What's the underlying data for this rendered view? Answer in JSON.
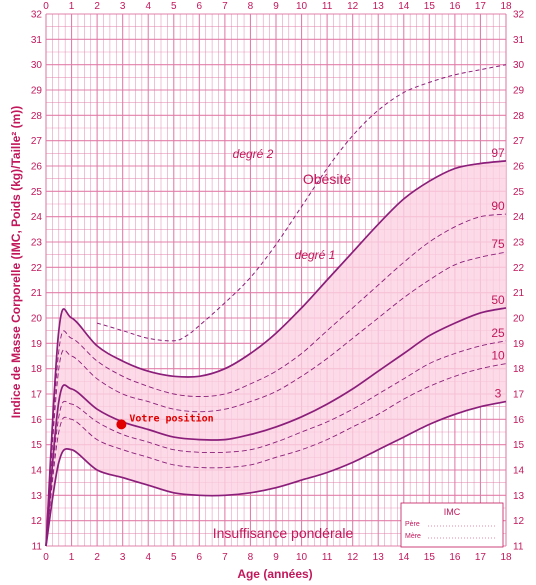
{
  "chart_data": {
    "type": "line",
    "xlabel": "Age (années)",
    "ylabel": "Indice de Masse Corporelle (IMC, Poids (kg)/Taille² (m))",
    "xlim": [
      0,
      18
    ],
    "ylim": [
      11,
      32
    ],
    "x_ticks": [
      "0",
      "1",
      "2",
      "3",
      "4",
      "5",
      "6",
      "7",
      "8",
      "9",
      "10",
      "11",
      "12",
      "13",
      "14",
      "15",
      "16",
      "17",
      "18"
    ],
    "y_ticks": [
      "11",
      "12",
      "13",
      "14",
      "15",
      "16",
      "17",
      "18",
      "19",
      "20",
      "21",
      "22",
      "23",
      "24",
      "25",
      "26",
      "27",
      "28",
      "29",
      "30",
      "31",
      "32"
    ],
    "grid": true,
    "series": [
      {
        "name": "3",
        "x": [
          0,
          0.5,
          1,
          2,
          3,
          4,
          5,
          6,
          7,
          8,
          9,
          10,
          11,
          12,
          13,
          14,
          15,
          16,
          17,
          18
        ],
        "values": [
          11.0,
          14.3,
          14.8,
          14.0,
          13.7,
          13.4,
          13.1,
          13.0,
          13.0,
          13.1,
          13.3,
          13.6,
          13.9,
          14.3,
          14.8,
          15.3,
          15.8,
          16.2,
          16.5,
          16.7
        ]
      },
      {
        "name": "10",
        "x": [
          0,
          0.5,
          1,
          2,
          3,
          4,
          5,
          6,
          7,
          8,
          9,
          10,
          11,
          12,
          13,
          14,
          15,
          16,
          17,
          18
        ],
        "values": [
          11.0,
          15.5,
          16.0,
          15.2,
          14.8,
          14.5,
          14.2,
          14.1,
          14.1,
          14.2,
          14.5,
          14.8,
          15.2,
          15.7,
          16.2,
          16.8,
          17.3,
          17.7,
          18.0,
          18.2
        ]
      },
      {
        "name": "25",
        "x": [
          0,
          0.5,
          1,
          2,
          3,
          4,
          5,
          6,
          7,
          8,
          9,
          10,
          11,
          12,
          13,
          14,
          15,
          16,
          17,
          18
        ],
        "values": [
          11.0,
          16.1,
          16.6,
          15.9,
          15.4,
          15.1,
          14.8,
          14.7,
          14.7,
          14.8,
          15.1,
          15.5,
          15.9,
          16.4,
          17.0,
          17.6,
          18.2,
          18.6,
          18.9,
          19.1
        ]
      },
      {
        "name": "50",
        "x": [
          0,
          0.5,
          1,
          2,
          3,
          4,
          5,
          6,
          7,
          8,
          9,
          10,
          11,
          12,
          13,
          14,
          15,
          16,
          17,
          18
        ],
        "values": [
          11.0,
          16.7,
          17.2,
          16.4,
          15.9,
          15.6,
          15.3,
          15.2,
          15.2,
          15.4,
          15.7,
          16.1,
          16.6,
          17.2,
          17.9,
          18.6,
          19.3,
          19.8,
          20.2,
          20.4
        ]
      },
      {
        "name": "75",
        "x": [
          0,
          0.5,
          1,
          2,
          3,
          4,
          5,
          6,
          7,
          8,
          9,
          10,
          11,
          12,
          13,
          14,
          15,
          16,
          17,
          18
        ],
        "values": [
          11.0,
          18.0,
          18.5,
          17.6,
          17.0,
          16.7,
          16.4,
          16.3,
          16.4,
          16.7,
          17.1,
          17.7,
          18.4,
          19.2,
          20.0,
          20.8,
          21.5,
          22.1,
          22.4,
          22.6
        ]
      },
      {
        "name": "90",
        "x": [
          0,
          0.5,
          1,
          2,
          3,
          4,
          5,
          6,
          7,
          8,
          9,
          10,
          11,
          12,
          13,
          14,
          15,
          16,
          17,
          18
        ],
        "values": [
          11.0,
          18.7,
          19.2,
          18.3,
          17.7,
          17.3,
          17.0,
          16.9,
          17.0,
          17.4,
          17.9,
          18.6,
          19.5,
          20.4,
          21.3,
          22.2,
          23.0,
          23.6,
          24.0,
          24.1
        ]
      },
      {
        "name": "97",
        "x": [
          0,
          0.5,
          1,
          2,
          3,
          4,
          5,
          6,
          7,
          8,
          9,
          10,
          11,
          12,
          13,
          14,
          15,
          16,
          17,
          18
        ],
        "values": [
          11.0,
          19.5,
          20.0,
          18.9,
          18.3,
          17.9,
          17.7,
          17.7,
          18.0,
          18.6,
          19.4,
          20.4,
          21.5,
          22.6,
          23.7,
          24.7,
          25.4,
          25.9,
          26.1,
          26.2
        ]
      },
      {
        "name": "degré 2",
        "style": "dashed",
        "x": [
          2,
          3,
          4,
          5,
          5.5,
          6,
          7,
          8,
          9,
          10,
          11,
          12,
          13,
          14,
          15,
          16,
          17,
          18
        ],
        "values": [
          19.8,
          19.5,
          19.2,
          19.1,
          19.3,
          19.7,
          20.6,
          21.6,
          22.9,
          24.4,
          25.9,
          27.2,
          28.2,
          28.9,
          29.3,
          29.6,
          29.8,
          30.0
        ]
      }
    ],
    "annotations": [
      "degré 2",
      "Obésité",
      "degré 1",
      "Insuffisance pondérale",
      "Votre position"
    ],
    "point": {
      "label": "Votre position",
      "x": 2.95,
      "y": 15.8,
      "color": "#e00000"
    },
    "legend": {
      "title": "IMC",
      "rows": [
        "Père",
        "Mère"
      ],
      "placement": "bottom-right"
    }
  },
  "colors": {
    "line": "#8b1e7a",
    "grid": "#e07aa6",
    "fill": "#fbd1e1",
    "text": "#c2185b",
    "marker": "#e00000"
  }
}
